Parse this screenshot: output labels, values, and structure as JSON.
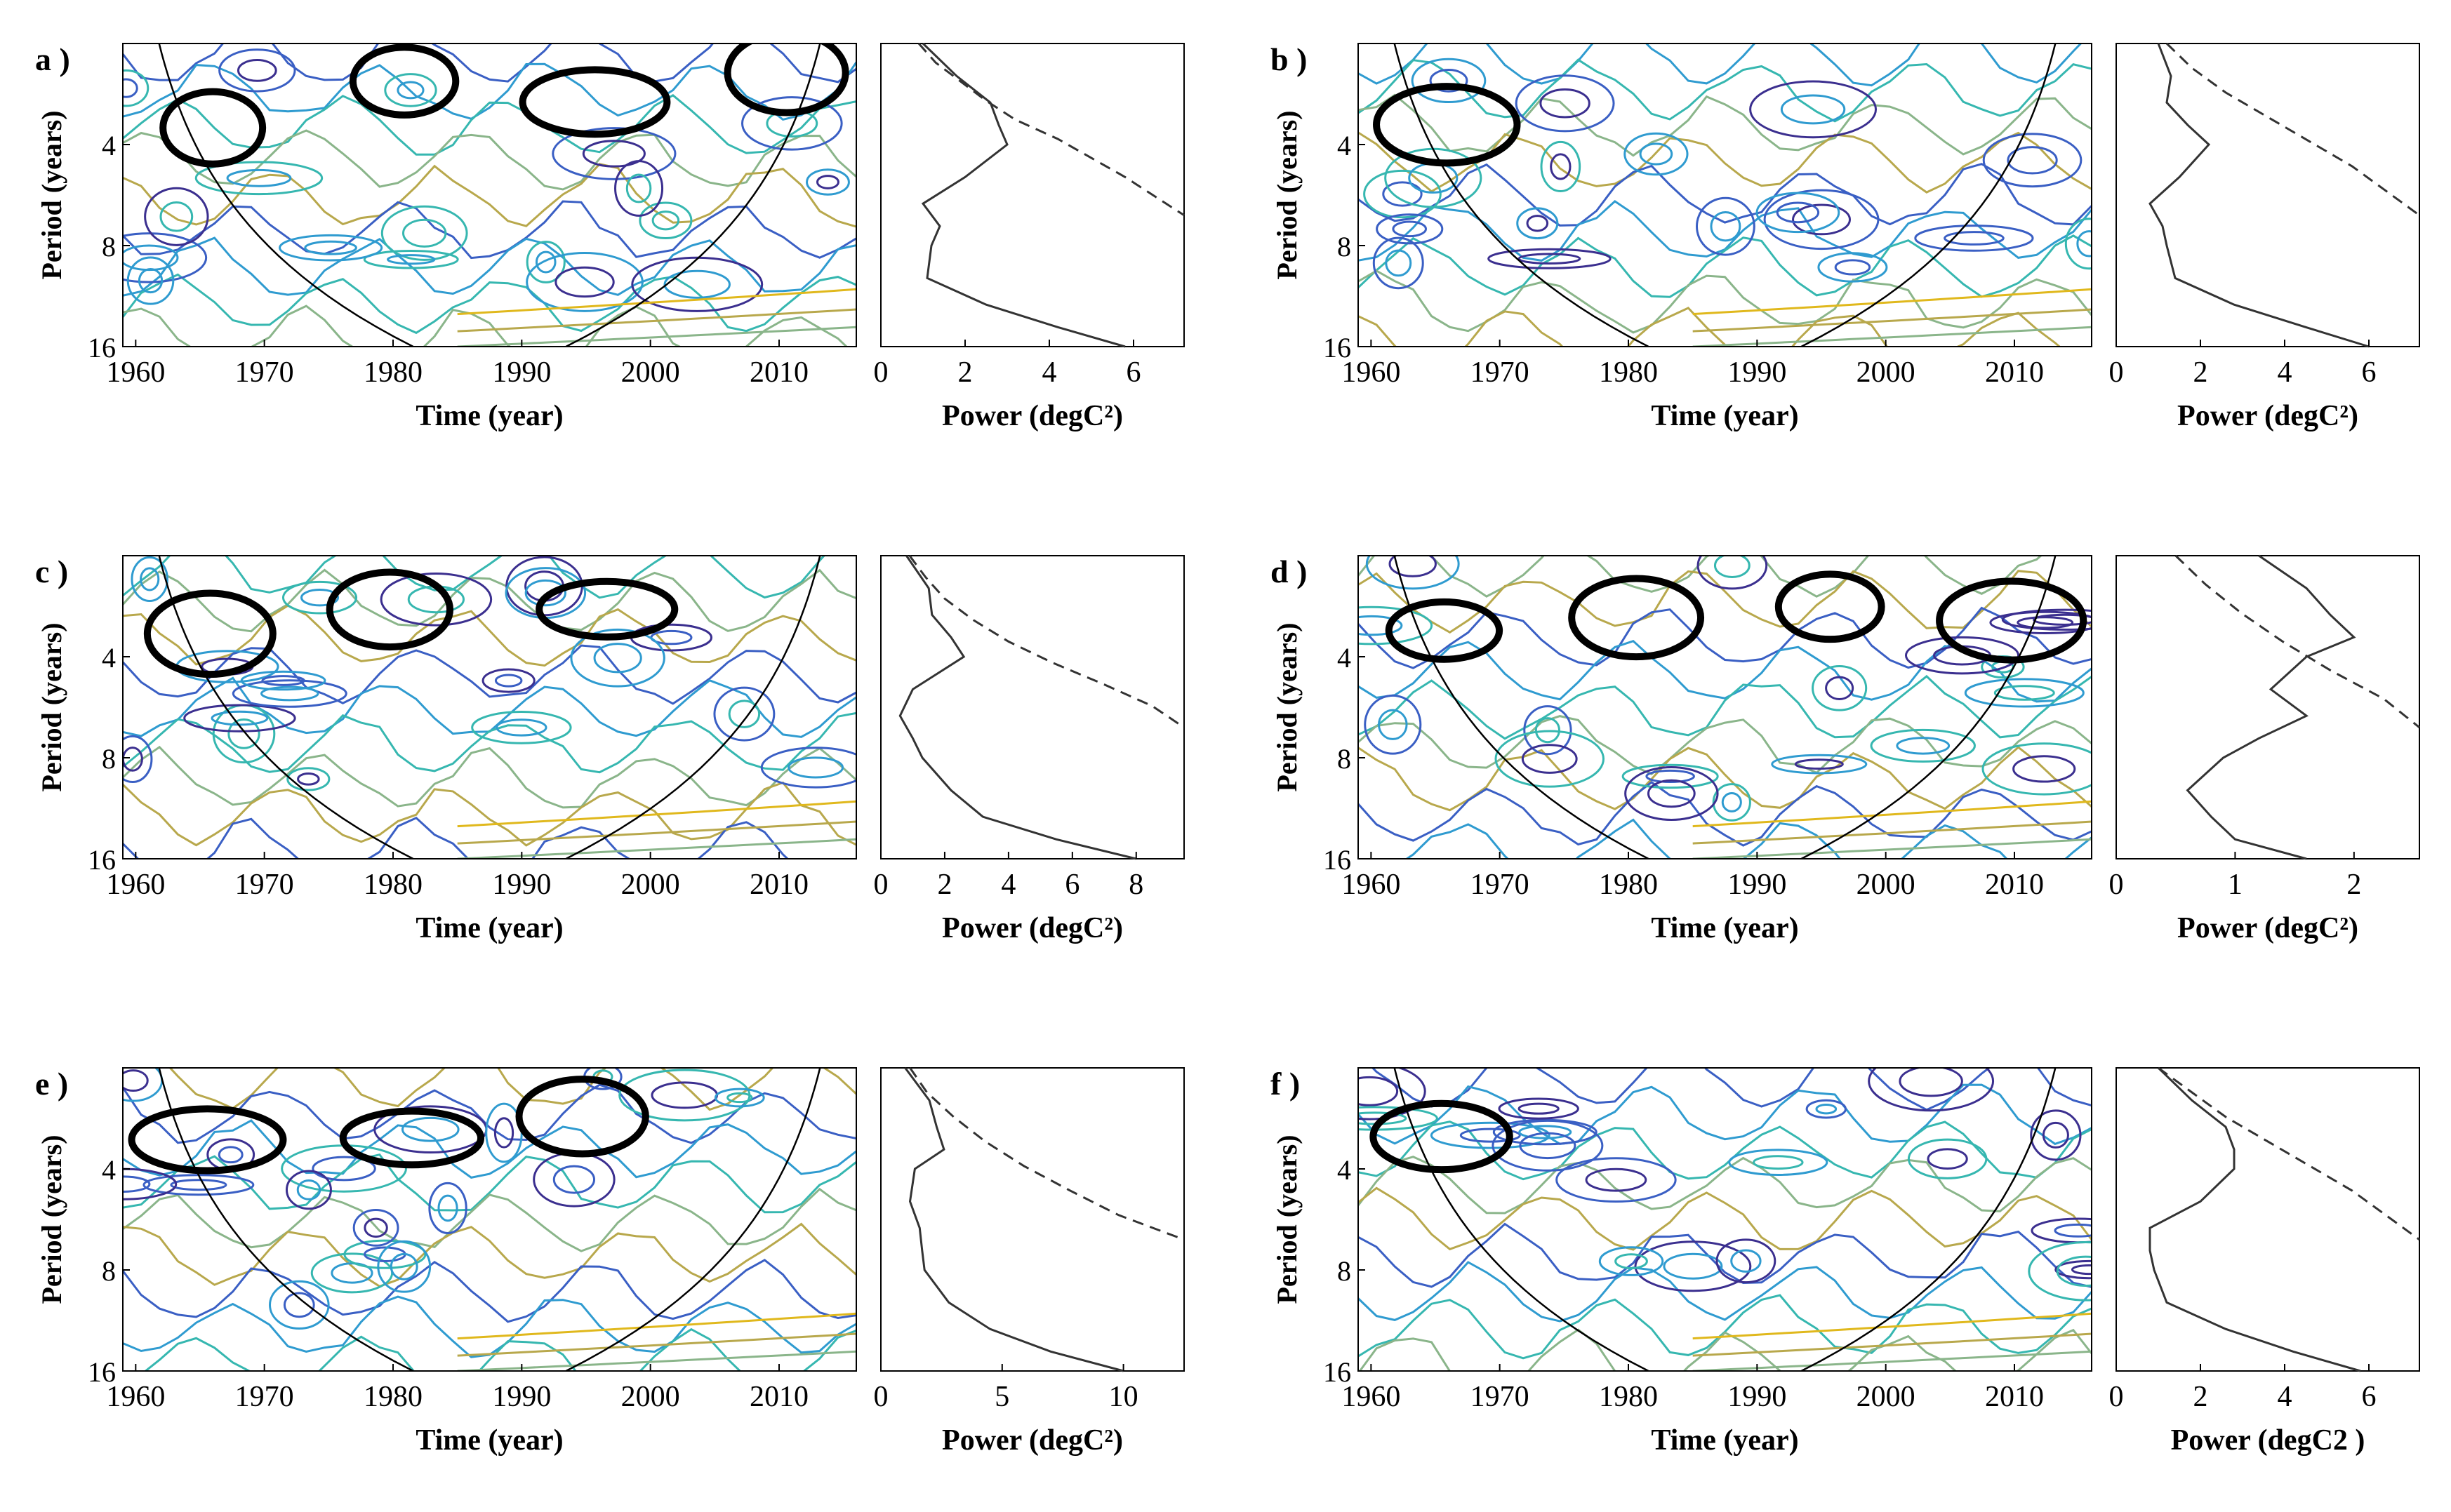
{
  "figure": {
    "x_ticks": [
      "1960",
      "1970",
      "1980",
      "1990",
      "2000",
      "2010"
    ],
    "y_ticks": [
      "4",
      "8",
      "16"
    ],
    "wavelet_xlabel": "Time (year)",
    "wavelet_ylabel": "Period (years)",
    "power_xlabel_main": "Power (degC",
    "power_xlabel_sup": "2",
    "power_xlabel_close": ")",
    "contour_colors": [
      "#3b2f8f",
      "#3a5fc4",
      "#2f9bd0",
      "#36b7b0",
      "#8ab58a",
      "#b8a84c",
      "#e0b81c"
    ],
    "significance_color": "#000000"
  },
  "chart_data": [
    {
      "panel": "a )",
      "type": "heatmap",
      "wavelet": {
        "xlim": [
          1959,
          2016
        ],
        "ylim": [
          2,
          16
        ],
        "y_scale": "log2",
        "xlabel": "Time (year)",
        "ylabel": "Period (years)"
      },
      "power": {
        "type": "line",
        "xlabel": "Power (degC^2)",
        "x_ticks": [
          "0",
          "2",
          "4",
          "6"
        ],
        "xlim": [
          0,
          7.2
        ],
        "period": [
          2,
          2.5,
          3,
          3.5,
          4,
          5,
          6,
          7,
          8,
          10,
          12,
          14,
          16
        ],
        "global_power": [
          1.0,
          1.8,
          2.6,
          2.8,
          3.0,
          2.0,
          1.0,
          1.4,
          1.2,
          1.1,
          2.5,
          4.2,
          5.8
        ],
        "significance": [
          0.9,
          1.3,
          1.9,
          2.5,
          3.2,
          4.2,
          5.0,
          5.8,
          6.5,
          7.2
        ]
      }
    },
    {
      "panel": "b )",
      "type": "heatmap",
      "wavelet": {
        "xlim": [
          1959,
          2016
        ],
        "ylim": [
          2,
          16
        ],
        "y_scale": "log2",
        "xlabel": "Time (year)",
        "ylabel": "Period (years)"
      },
      "power": {
        "type": "line",
        "xlabel": "Power (degC^2)",
        "x_ticks": [
          "0",
          "2",
          "4",
          "6"
        ],
        "xlim": [
          0,
          7.2
        ],
        "period": [
          2,
          2.5,
          3,
          3.5,
          4,
          5,
          6,
          7,
          8,
          10,
          12,
          14,
          16
        ],
        "global_power": [
          1.0,
          1.3,
          1.2,
          1.7,
          2.2,
          1.5,
          0.8,
          1.1,
          1.2,
          1.4,
          2.8,
          4.5,
          6.0
        ],
        "significance": [
          1.2,
          1.8,
          2.6,
          3.6,
          4.6,
          5.6,
          6.4,
          7.2
        ]
      }
    },
    {
      "panel": "c )",
      "type": "heatmap",
      "wavelet": {
        "xlim": [
          1959,
          2016
        ],
        "ylim": [
          2,
          16
        ],
        "y_scale": "log2",
        "xlabel": "Time (year)",
        "ylabel": "Period (years)"
      },
      "power": {
        "type": "line",
        "xlabel": "Power (degC^2)",
        "x_ticks": [
          "0",
          "2",
          "4",
          "6",
          "8"
        ],
        "xlim": [
          0,
          9.5
        ],
        "period": [
          2,
          2.5,
          3,
          3.5,
          4,
          5,
          6,
          7,
          8,
          10,
          12,
          14,
          16
        ],
        "global_power": [
          0.8,
          1.5,
          1.6,
          2.2,
          2.6,
          1.0,
          0.6,
          1.0,
          1.3,
          2.2,
          3.2,
          5.5,
          8.0
        ],
        "significance": [
          0.9,
          1.4,
          2.0,
          2.9,
          4.0,
          5.4,
          7.0,
          8.5,
          9.5
        ]
      }
    },
    {
      "panel": "d )",
      "type": "heatmap",
      "wavelet": {
        "xlim": [
          1959,
          2016
        ],
        "ylim": [
          2,
          16
        ],
        "y_scale": "log2",
        "xlabel": "Time (year)",
        "ylabel": "Period (years)"
      },
      "power": {
        "type": "line",
        "xlabel": "Power (degC^2)",
        "x_ticks": [
          "0",
          "1",
          "2"
        ],
        "xlim": [
          0,
          2.55
        ],
        "period": [
          2,
          2.5,
          3,
          3.5,
          4,
          5,
          6,
          7,
          8,
          10,
          12,
          14,
          16
        ],
        "global_power": [
          1.2,
          1.6,
          1.8,
          2.0,
          1.6,
          1.3,
          1.6,
          1.2,
          0.9,
          0.6,
          0.8,
          1.0,
          1.6
        ],
        "significance": [
          0.5,
          0.75,
          1.05,
          1.4,
          1.8,
          2.25,
          2.55
        ]
      }
    },
    {
      "panel": "e )",
      "type": "heatmap",
      "wavelet": {
        "xlim": [
          1959,
          2016
        ],
        "ylim": [
          2,
          16
        ],
        "y_scale": "log2",
        "xlabel": "Time (year)",
        "ylabel": "Period (years)"
      },
      "power": {
        "type": "line",
        "xlabel": "Power (degC^2)",
        "x_ticks": [
          "0",
          "5",
          "10"
        ],
        "xlim": [
          0,
          12.5
        ],
        "period": [
          2,
          2.5,
          3,
          3.5,
          4,
          5,
          6,
          7,
          8,
          10,
          12,
          14,
          16
        ],
        "global_power": [
          1.0,
          2.0,
          2.3,
          2.6,
          1.4,
          1.2,
          1.6,
          1.7,
          1.8,
          2.8,
          4.5,
          7.0,
          10.0
        ],
        "significance": [
          1.2,
          1.9,
          3.0,
          4.3,
          5.9,
          7.8,
          9.8,
          12.5
        ]
      }
    },
    {
      "panel": "f )",
      "type": "heatmap",
      "wavelet": {
        "xlim": [
          1959,
          2016
        ],
        "ylim": [
          2,
          16
        ],
        "y_scale": "log2",
        "xlabel": "Time (year)",
        "ylabel": "Period (years)"
      },
      "power": {
        "type": "line",
        "xlabel": "Power (degC2 )",
        "x_ticks": [
          "0",
          "2",
          "4",
          "6"
        ],
        "xlim": [
          0,
          7.2
        ],
        "period": [
          2,
          2.5,
          3,
          3.5,
          4,
          5,
          6,
          7,
          8,
          10,
          12,
          14,
          16
        ],
        "global_power": [
          1.0,
          1.8,
          2.6,
          2.8,
          2.8,
          2.0,
          0.8,
          0.8,
          0.9,
          1.2,
          2.6,
          4.2,
          5.8
        ],
        "significance": [
          1.0,
          1.8,
          2.6,
          3.6,
          4.6,
          5.6,
          6.4,
          7.2
        ]
      }
    }
  ]
}
